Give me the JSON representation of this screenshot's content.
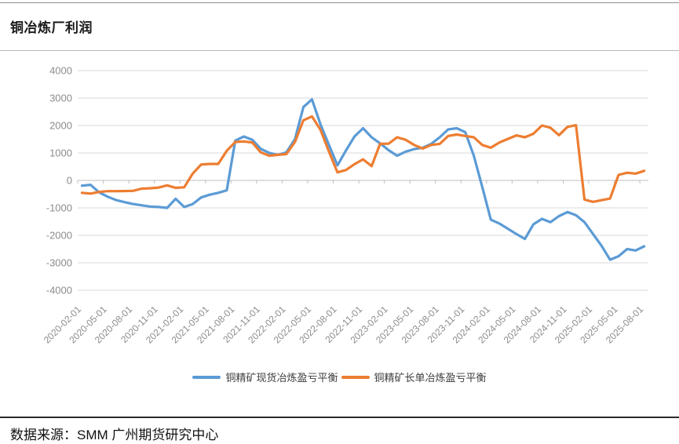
{
  "header": {
    "title": "铜冶炼厂利润"
  },
  "footer": {
    "source_label": "数据来源：SMM  广州期货研究中心"
  },
  "colors": {
    "spot_series": "#5B9BD5",
    "long_series": "#ED7D31",
    "gridline": "#D9D9D9",
    "axis_line": "#BFBFBF",
    "tick_label": "#8C8C8C"
  },
  "chart_data": {
    "type": "line",
    "title": "铜冶炼厂利润",
    "xlabel": "",
    "ylabel": "",
    "ylim": [
      -4000,
      4000
    ],
    "grid": true,
    "legend_position": "bottom",
    "y_ticks": [
      4000,
      3000,
      2000,
      1000,
      0,
      -1000,
      -2000,
      -3000,
      -4000
    ],
    "x_tick_labels": [
      "2020-02-01",
      "2020-05-01",
      "2020-08-01",
      "2020-11-01",
      "2021-02-01",
      "2021-05-01",
      "2021-08-01",
      "2021-11-01",
      "2022-02-01",
      "2022-05-01",
      "2022-08-01",
      "2022-11-01",
      "2023-02-01",
      "2023-05-01",
      "2023-08-01",
      "2023-11-01",
      "2024-02-01",
      "2024-05-01",
      "2024-08-01",
      "2024-11-01",
      "2025-02-01",
      "2025-05-01",
      "2025-08-01"
    ],
    "x": [
      "2020-02-01",
      "2020-03-01",
      "2020-04-01",
      "2020-05-01",
      "2020-06-01",
      "2020-07-01",
      "2020-08-01",
      "2020-09-01",
      "2020-10-01",
      "2020-11-01",
      "2020-12-01",
      "2021-01-01",
      "2021-02-01",
      "2021-03-01",
      "2021-04-01",
      "2021-05-01",
      "2021-06-01",
      "2021-07-01",
      "2021-08-01",
      "2021-09-01",
      "2021-10-01",
      "2021-11-01",
      "2021-12-01",
      "2022-01-01",
      "2022-02-01",
      "2022-03-01",
      "2022-04-01",
      "2022-05-01",
      "2022-06-01",
      "2022-07-01",
      "2022-08-01",
      "2022-09-01",
      "2022-10-01",
      "2022-11-01",
      "2022-12-01",
      "2023-01-01",
      "2023-02-01",
      "2023-03-01",
      "2023-04-01",
      "2023-05-01",
      "2023-06-01",
      "2023-07-01",
      "2023-08-01",
      "2023-09-01",
      "2023-10-01",
      "2023-11-01",
      "2023-12-01",
      "2024-01-01",
      "2024-02-01",
      "2024-03-01",
      "2024-04-01",
      "2024-05-01",
      "2024-06-01",
      "2024-07-01",
      "2024-08-01",
      "2024-09-01",
      "2024-10-01",
      "2024-11-01",
      "2024-12-01",
      "2025-01-01",
      "2025-02-01",
      "2025-03-01",
      "2025-04-01",
      "2025-05-01",
      "2025-06-01",
      "2025-07-01",
      "2025-08-01"
    ],
    "series": [
      {
        "name": "铜精矿现货冶炼盈亏平衡",
        "color": "#5B9BD5",
        "values": [
          -190,
          -160,
          -430,
          -590,
          -715,
          -790,
          -860,
          -905,
          -950,
          -970,
          -1000,
          -670,
          -970,
          -860,
          -620,
          -520,
          -450,
          -360,
          1450,
          1600,
          1480,
          1150,
          1000,
          930,
          1020,
          1500,
          2670,
          2950,
          2050,
          1290,
          550,
          1095,
          1600,
          1900,
          1570,
          1350,
          1100,
          900,
          1050,
          1140,
          1190,
          1330,
          1570,
          1860,
          1900,
          1760,
          900,
          -240,
          -1430,
          -1570,
          -1760,
          -1950,
          -2130,
          -1600,
          -1400,
          -1520,
          -1300,
          -1150,
          -1270,
          -1520,
          -1950,
          -2380,
          -2890,
          -2760,
          -2500,
          -2550,
          -2400
        ]
      },
      {
        "name": "铜精矿长单冶炼盈亏平衡",
        "color": "#ED7D31",
        "values": [
          -450,
          -480,
          -420,
          -390,
          -390,
          -385,
          -380,
          -300,
          -285,
          -260,
          -180,
          -270,
          -250,
          250,
          580,
          600,
          600,
          1080,
          1400,
          1420,
          1380,
          1020,
          900,
          930,
          960,
          1400,
          2190,
          2330,
          1850,
          1050,
          295,
          380,
          590,
          770,
          520,
          1330,
          1340,
          1570,
          1480,
          1290,
          1160,
          1290,
          1330,
          1620,
          1670,
          1620,
          1570,
          1290,
          1190,
          1380,
          1510,
          1640,
          1570,
          1700,
          2000,
          1920,
          1650,
          1950,
          2010,
          -700,
          -780,
          -720,
          -660,
          200,
          280,
          250,
          350
        ]
      }
    ]
  }
}
